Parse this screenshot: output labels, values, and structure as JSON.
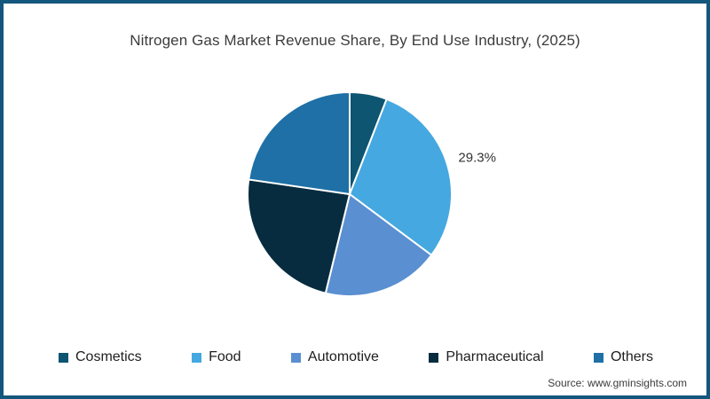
{
  "title": "Nitrogen Gas Market Revenue Share, By End Use Industry, (2025)",
  "source": "Source: www.gminsights.com",
  "colors": {
    "page_border": "#14577d",
    "slice_divider": "#ffffff",
    "title_text": "#3c3c3c",
    "legend_text": "#1e1e1e",
    "data_label_text": "#333333"
  },
  "chart_data": {
    "type": "pie",
    "title": "Nitrogen Gas Market Revenue Share, By End Use Industry, (2025)",
    "start_angle_deg": 0,
    "direction": "clockwise",
    "legend_position": "bottom",
    "series": [
      {
        "name": "Cosmetics",
        "value": 5.9,
        "color": "#0d5571",
        "label": ""
      },
      {
        "name": "Food",
        "value": 29.3,
        "color": "#45a8e0",
        "label": "29.3%"
      },
      {
        "name": "Automotive",
        "value": 18.6,
        "color": "#5a8fd1",
        "label": ""
      },
      {
        "name": "Pharmaceutical",
        "value": 23.5,
        "color": "#072c3f",
        "label": ""
      },
      {
        "name": "Others",
        "value": 22.7,
        "color": "#1e70a6",
        "label": ""
      }
    ]
  }
}
